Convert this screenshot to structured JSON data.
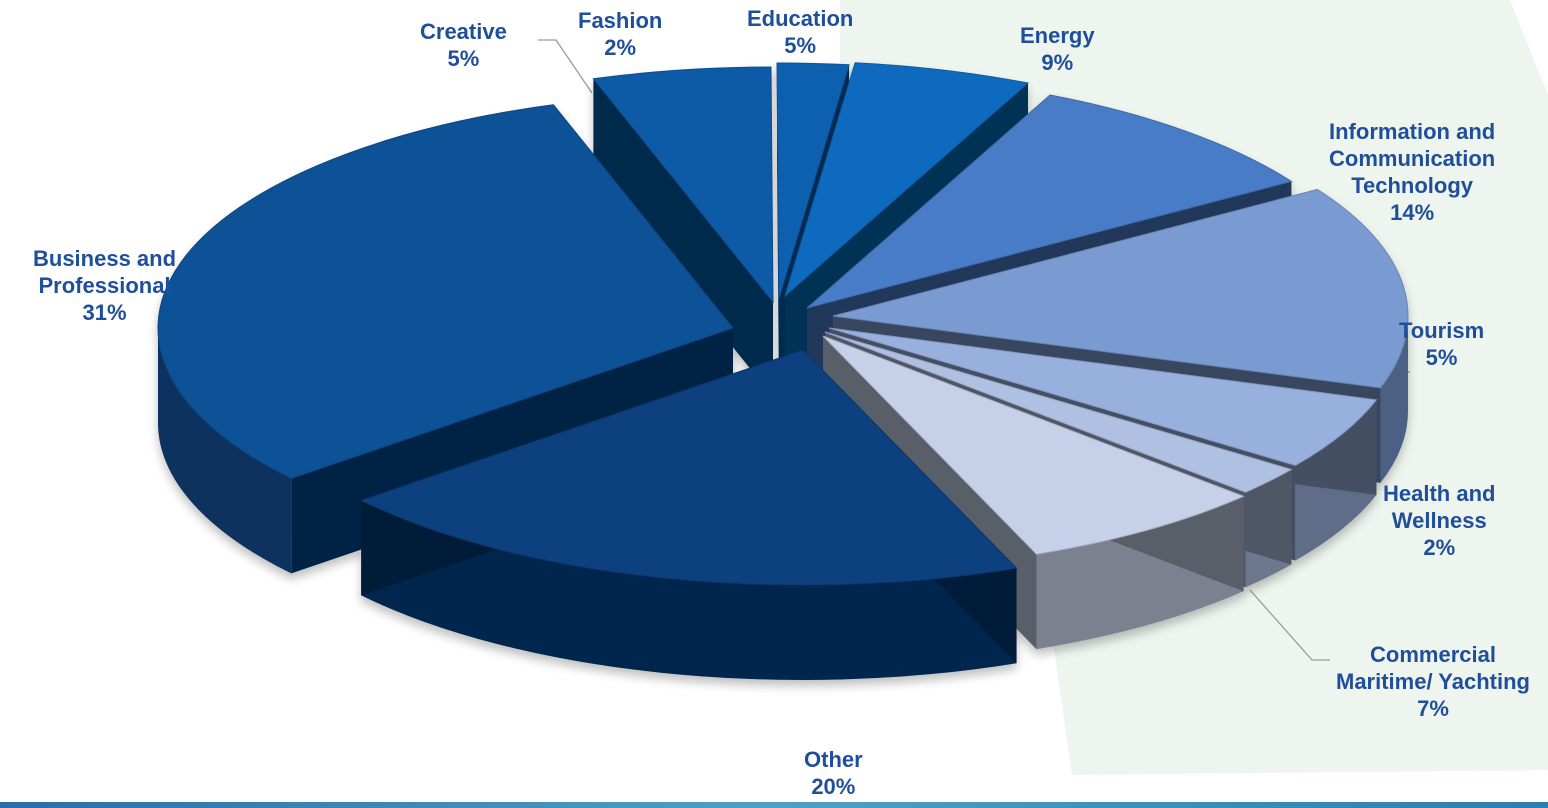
{
  "chart_data": {
    "type": "pie",
    "title": "",
    "label_color": "#1F4E9A",
    "slices": [
      {
        "name": "Education",
        "pct_label": "5%",
        "value": 5,
        "color": "#0E6BBE"
      },
      {
        "name": "Energy",
        "pct_label": "9%",
        "value": 9,
        "color": "#4A7CC7"
      },
      {
        "name": "Information and Communication Technology",
        "name_lines": [
          "Information and",
          "Communication",
          "Technology"
        ],
        "pct_label": "14%",
        "value": 14,
        "color": "#7A9BD2"
      },
      {
        "name": "Tourism",
        "pct_label": "5%",
        "value": 5,
        "color": "#98B0DD"
      },
      {
        "name": "Health and Wellness",
        "name_lines": [
          "Health and",
          "Wellness"
        ],
        "pct_label": "2%",
        "value": 2,
        "color": "#AFC0E3"
      },
      {
        "name": "Commercial Maritime/ Yachting",
        "name_lines": [
          "Commercial",
          "Maritime/ Yachting"
        ],
        "pct_label": "7%",
        "value": 7,
        "color": "#C6D0E8"
      },
      {
        "name": "Other",
        "pct_label": "20%",
        "value": 20,
        "color": "#093F7E"
      },
      {
        "name": "Business and Professional",
        "name_lines": [
          "Business and",
          "Professional"
        ],
        "pct_label": "31%",
        "value": 31,
        "color": "#0B5196"
      },
      {
        "name": "Creative",
        "pct_label": "5%",
        "value": 5,
        "color": "#0C5AA6"
      },
      {
        "name": "Fashion",
        "pct_label": "2%",
        "value": 2,
        "color": "#0B60B0"
      }
    ]
  }
}
